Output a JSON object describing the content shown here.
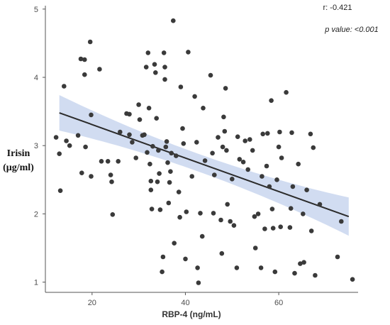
{
  "chart_data": {
    "type": "scatter",
    "xlabel": "RBP-4 (ng/mL)",
    "ylabel_lines": [
      "Irisin",
      "(μg/ml)"
    ],
    "xlim": [
      10,
      77
    ],
    "ylim": [
      0.85,
      5.05
    ],
    "x_ticks": [
      "20",
      "40",
      "60"
    ],
    "y_ticks": [
      "1",
      "2",
      "3",
      "4",
      "5"
    ],
    "grid": false,
    "annotations": {
      "r": "r: -0.421",
      "p": "p value: <0.001"
    },
    "colors": {
      "points": "#3a3a3a",
      "line": "#2b2b2b",
      "band": "#c9d6ee",
      "axis": "#555555"
    },
    "regression": {
      "x": [
        13,
        75
      ],
      "y": [
        3.48,
        1.96
      ],
      "band_half_width": [
        0.26,
        0.13,
        0.28
      ]
    },
    "points": [
      [
        12.3,
        3.12
      ],
      [
        13.0,
        2.88
      ],
      [
        13.2,
        2.34
      ],
      [
        14.0,
        3.87
      ],
      [
        14.5,
        3.07
      ],
      [
        15.2,
        3.0
      ],
      [
        17.0,
        3.15
      ],
      [
        17.6,
        4.27
      ],
      [
        17.8,
        2.6
      ],
      [
        18.4,
        4.04
      ],
      [
        18.4,
        4.26
      ],
      [
        18.6,
        2.98
      ],
      [
        19.6,
        4.52
      ],
      [
        19.8,
        3.45
      ],
      [
        19.8,
        2.55
      ],
      [
        21.6,
        4.12
      ],
      [
        22.0,
        2.77
      ],
      [
        23.4,
        2.77
      ],
      [
        24.0,
        2.57
      ],
      [
        24.2,
        2.47
      ],
      [
        24.4,
        1.99
      ],
      [
        25.6,
        2.77
      ],
      [
        26.0,
        3.2
      ],
      [
        27.4,
        3.47
      ],
      [
        28.0,
        3.46
      ],
      [
        28.0,
        3.16
      ],
      [
        28.6,
        3.05
      ],
      [
        29.4,
        2.82
      ],
      [
        30.0,
        3.6
      ],
      [
        30.2,
        3.38
      ],
      [
        30.8,
        3.15
      ],
      [
        31.2,
        3.16
      ],
      [
        31.6,
        4.15
      ],
      [
        31.8,
        2.9
      ],
      [
        32.0,
        4.36
      ],
      [
        32.2,
        3.55
      ],
      [
        32.4,
        2.73
      ],
      [
        32.6,
        2.48
      ],
      [
        32.6,
        2.35
      ],
      [
        32.8,
        2.07
      ],
      [
        33.0,
        2.99
      ],
      [
        33.4,
        4.19
      ],
      [
        33.6,
        4.07
      ],
      [
        33.8,
        3.4
      ],
      [
        34.0,
        2.47
      ],
      [
        34.2,
        2.93
      ],
      [
        34.4,
        2.59
      ],
      [
        34.6,
        2.06
      ],
      [
        35.0,
        1.15
      ],
      [
        35.2,
        1.37
      ],
      [
        35.4,
        4.36
      ],
      [
        35.6,
        4.15
      ],
      [
        35.6,
        3.97
      ],
      [
        35.8,
        2.98
      ],
      [
        36.0,
        3.06
      ],
      [
        36.2,
        2.75
      ],
      [
        36.4,
        2.16
      ],
      [
        36.6,
        2.46
      ],
      [
        36.8,
        2.62
      ],
      [
        37.0,
        2.89
      ],
      [
        37.4,
        4.83
      ],
      [
        37.6,
        1.57
      ],
      [
        38.0,
        2.85
      ],
      [
        38.6,
        2.32
      ],
      [
        38.8,
        1.95
      ],
      [
        39.0,
        3.86
      ],
      [
        39.4,
        3.25
      ],
      [
        39.6,
        3.03
      ],
      [
        40.0,
        1.34
      ],
      [
        40.2,
        2.03
      ],
      [
        40.6,
        4.37
      ],
      [
        41.4,
        2.55
      ],
      [
        42.0,
        3.72
      ],
      [
        42.4,
        3.05
      ],
      [
        42.6,
        1.21
      ],
      [
        42.8,
        0.99
      ],
      [
        43.2,
        2.01
      ],
      [
        43.6,
        1.67
      ],
      [
        43.8,
        3.55
      ],
      [
        44.2,
        2.78
      ],
      [
        45.4,
        4.03
      ],
      [
        45.8,
        2.89
      ],
      [
        46.0,
        2.01
      ],
      [
        46.2,
        2.57
      ],
      [
        47.0,
        3.12
      ],
      [
        47.6,
        1.91
      ],
      [
        47.8,
        1.42
      ],
      [
        48.0,
        2.98
      ],
      [
        48.2,
        3.42
      ],
      [
        48.4,
        3.21
      ],
      [
        48.6,
        3.84
      ],
      [
        48.8,
        2.93
      ],
      [
        49.0,
        2.14
      ],
      [
        49.6,
        1.89
      ],
      [
        50.0,
        2.51
      ],
      [
        50.4,
        1.83
      ],
      [
        51.0,
        1.21
      ],
      [
        51.2,
        3.13
      ],
      [
        51.6,
        2.8
      ],
      [
        52.4,
        2.76
      ],
      [
        52.8,
        3.07
      ],
      [
        53.4,
        2.65
      ],
      [
        53.8,
        3.09
      ],
      [
        54.4,
        2.93
      ],
      [
        54.8,
        1.96
      ],
      [
        55.0,
        1.5
      ],
      [
        55.6,
        2.0
      ],
      [
        56.2,
        1.21
      ],
      [
        56.4,
        2.55
      ],
      [
        56.6,
        3.17
      ],
      [
        57.0,
        1.78
      ],
      [
        57.4,
        2.7
      ],
      [
        57.6,
        3.18
      ],
      [
        58.0,
        2.4
      ],
      [
        58.4,
        3.66
      ],
      [
        58.6,
        2.07
      ],
      [
        58.8,
        1.79
      ],
      [
        59.2,
        1.15
      ],
      [
        59.6,
        2.5
      ],
      [
        60.0,
        2.98
      ],
      [
        60.2,
        3.2
      ],
      [
        60.4,
        1.81
      ],
      [
        60.6,
        2.82
      ],
      [
        61.6,
        3.78
      ],
      [
        62.4,
        1.8
      ],
      [
        62.6,
        2.08
      ],
      [
        62.8,
        3.19
      ],
      [
        63.0,
        2.4
      ],
      [
        63.4,
        1.13
      ],
      [
        64.2,
        2.73
      ],
      [
        64.6,
        1.27
      ],
      [
        65.2,
        2.0
      ],
      [
        65.4,
        1.29
      ],
      [
        66.0,
        2.35
      ],
      [
        66.8,
        3.17
      ],
      [
        67.0,
        1.75
      ],
      [
        67.4,
        2.97
      ],
      [
        67.8,
        1.1
      ],
      [
        68.8,
        2.14
      ],
      [
        72.6,
        1.37
      ],
      [
        73.4,
        1.89
      ],
      [
        75.8,
        1.04
      ]
    ]
  }
}
